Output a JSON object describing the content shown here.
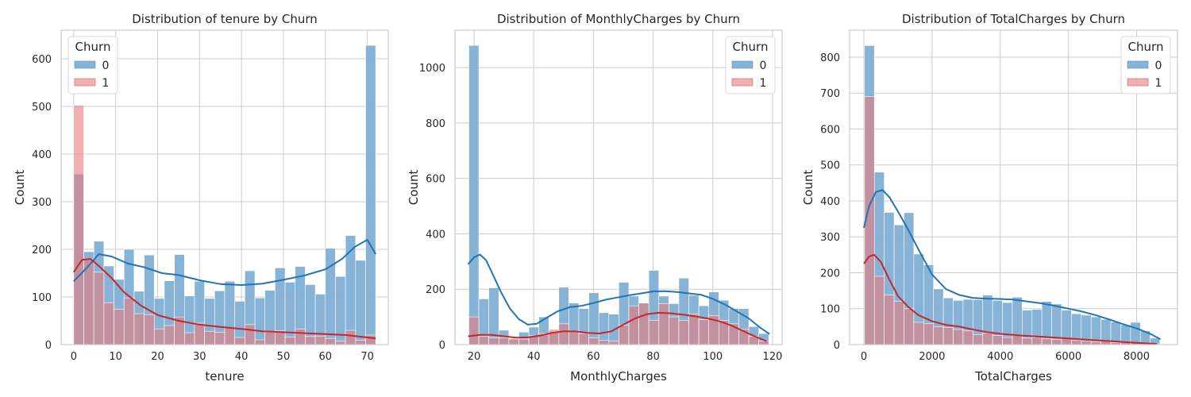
{
  "colors": {
    "churn0_fill": "#7FAFD4",
    "churn0_line": "#2374B5",
    "churn1_fill": "#E97979",
    "churn1_line": "#C8262C",
    "grid": "#CCCCCC",
    "spine": "#CCCCCC"
  },
  "chart_data": [
    {
      "type": "histogram",
      "title": "Distribution of tenure by Churn",
      "xlabel": "tenure",
      "ylabel": "Count",
      "xlim": [
        -3,
        75
      ],
      "ylim": [
        0,
        660
      ],
      "xticks": [
        0,
        10,
        20,
        30,
        40,
        50,
        60,
        70
      ],
      "yticks": [
        0,
        100,
        200,
        300,
        400,
        500,
        600
      ],
      "bin_edges": [
        0,
        2.4,
        4.8,
        7.2,
        9.6,
        12,
        14.4,
        16.8,
        19.2,
        21.6,
        24,
        26.4,
        28.8,
        31.2,
        33.6,
        36,
        38.4,
        40.8,
        43.2,
        45.6,
        48,
        50.4,
        52.8,
        55.2,
        57.6,
        60,
        62.4,
        64.8,
        67.2,
        69.6,
        72
      ],
      "legend": {
        "title": "Churn",
        "position": "upper left"
      },
      "series": [
        {
          "name": "0",
          "counts": [
            358,
            195,
            217,
            165,
            137,
            200,
            112,
            188,
            97,
            134,
            189,
            102,
            133,
            97,
            113,
            133,
            91,
            155,
            98,
            114,
            161,
            131,
            164,
            126,
            106,
            202,
            143,
            229,
            177,
            628
          ],
          "kde": [
            [
              0,
              133
            ],
            [
              3,
              160
            ],
            [
              6,
              190
            ],
            [
              9,
              185
            ],
            [
              13,
              170
            ],
            [
              17,
              162
            ],
            [
              21,
              150
            ],
            [
              25,
              146
            ],
            [
              30,
              135
            ],
            [
              35,
              127
            ],
            [
              40,
              125
            ],
            [
              45,
              128
            ],
            [
              50,
              136
            ],
            [
              55,
              145
            ],
            [
              60,
              158
            ],
            [
              64,
              180
            ],
            [
              67,
              205
            ],
            [
              70,
              220
            ],
            [
              72,
              190
            ]
          ]
        },
        {
          "name": "1",
          "counts": [
            502,
            180,
            152,
            88,
            74,
            98,
            65,
            63,
            33,
            40,
            58,
            25,
            45,
            28,
            26,
            35,
            15,
            42,
            10,
            26,
            29,
            16,
            33,
            17,
            18,
            13,
            7,
            30,
            9,
            20
          ],
          "kde": [
            [
              0,
              152
            ],
            [
              2,
              178
            ],
            [
              4,
              180
            ],
            [
              6,
              165
            ],
            [
              9,
              140
            ],
            [
              12,
              110
            ],
            [
              16,
              82
            ],
            [
              20,
              62
            ],
            [
              25,
              50
            ],
            [
              30,
              42
            ],
            [
              35,
              37
            ],
            [
              40,
              33
            ],
            [
              45,
              28
            ],
            [
              50,
              26
            ],
            [
              55,
              24
            ],
            [
              60,
              22
            ],
            [
              65,
              20
            ],
            [
              70,
              15
            ],
            [
              72,
              13
            ]
          ]
        }
      ]
    },
    {
      "type": "histogram",
      "title": "Distribution of MonthlyCharges by Churn",
      "xlabel": "MonthlyCharges",
      "ylabel": "Count",
      "xlim": [
        13.6,
        123.2
      ],
      "ylim": [
        0,
        1135
      ],
      "xticks": [
        20,
        40,
        60,
        80,
        100,
        120
      ],
      "yticks": [
        0,
        200,
        400,
        600,
        800,
        1000
      ],
      "bin_edges": [
        18.25,
        21.6,
        24.95,
        28.3,
        31.65,
        35,
        38.35,
        41.7,
        45.05,
        48.4,
        51.75,
        55.1,
        58.45,
        61.8,
        65.15,
        68.5,
        71.85,
        75.2,
        78.55,
        81.9,
        85.25,
        88.6,
        91.95,
        95.3,
        98.65,
        102,
        105.35,
        108.7,
        112.05,
        115.4,
        118.75
      ],
      "legend": {
        "title": "Churn",
        "position": "upper right"
      },
      "series": [
        {
          "name": "0",
          "counts": [
            1080,
            165,
            205,
            52,
            22,
            45,
            63,
            100,
            47,
            207,
            150,
            130,
            187,
            115,
            110,
            225,
            175,
            150,
            268,
            175,
            148,
            240,
            178,
            140,
            190,
            160,
            130,
            130,
            65,
            40
          ],
          "kde": [
            [
              18,
              290
            ],
            [
              20,
              315
            ],
            [
              22,
              325
            ],
            [
              24,
              305
            ],
            [
              26,
              260
            ],
            [
              29,
              190
            ],
            [
              32,
              130
            ],
            [
              35,
              92
            ],
            [
              38,
              72
            ],
            [
              41,
              75
            ],
            [
              44,
              95
            ],
            [
              48,
              120
            ],
            [
              52,
              135
            ],
            [
              56,
              140
            ],
            [
              60,
              150
            ],
            [
              64,
              162
            ],
            [
              68,
              170
            ],
            [
              72,
              178
            ],
            [
              76,
              185
            ],
            [
              80,
              192
            ],
            [
              84,
              193
            ],
            [
              88,
              190
            ],
            [
              92,
              185
            ],
            [
              96,
              180
            ],
            [
              100,
              165
            ],
            [
              104,
              145
            ],
            [
              108,
              120
            ],
            [
              112,
              95
            ],
            [
              116,
              60
            ],
            [
              119,
              38
            ]
          ]
        },
        {
          "name": "1",
          "counts": [
            100,
            30,
            25,
            25,
            20,
            20,
            32,
            40,
            55,
            75,
            50,
            40,
            25,
            15,
            12,
            70,
            140,
            150,
            88,
            148,
            100,
            88,
            110,
            90,
            105,
            88,
            75,
            55,
            30,
            12
          ],
          "kde": [
            [
              18,
              30
            ],
            [
              22,
              35
            ],
            [
              26,
              35
            ],
            [
              30,
              30
            ],
            [
              34,
              25
            ],
            [
              38,
              26
            ],
            [
              42,
              32
            ],
            [
              46,
              42
            ],
            [
              50,
              48
            ],
            [
              54,
              48
            ],
            [
              58,
              42
            ],
            [
              62,
              40
            ],
            [
              66,
              48
            ],
            [
              70,
              72
            ],
            [
              74,
              95
            ],
            [
              78,
              110
            ],
            [
              82,
              115
            ],
            [
              86,
              113
            ],
            [
              90,
              108
            ],
            [
              94,
              102
            ],
            [
              98,
              95
            ],
            [
              102,
              85
            ],
            [
              106,
              70
            ],
            [
              110,
              50
            ],
            [
              114,
              30
            ],
            [
              118,
              12
            ]
          ]
        }
      ]
    },
    {
      "type": "histogram",
      "title": "Distribution of TotalCharges by Churn",
      "xlabel": "TotalCharges",
      "ylabel": "Count",
      "xlim": [
        -420,
        9200
      ],
      "ylim": [
        0,
        875
      ],
      "xticks": [
        0,
        2000,
        4000,
        6000,
        8000
      ],
      "yticks": [
        0,
        100,
        200,
        300,
        400,
        500,
        600,
        700,
        800
      ],
      "bin_edges": [
        18.8,
        308,
        597,
        886,
        1175,
        1464,
        1753,
        2042,
        2331,
        2620,
        2909,
        3198,
        3487,
        3776,
        4065,
        4354,
        4643,
        4932,
        5221,
        5510,
        5799,
        6088,
        6377,
        6666,
        6955,
        7244,
        7533,
        7822,
        8111,
        8400,
        8685
      ],
      "legend": {
        "title": "Churn",
        "position": "upper right"
      },
      "series": [
        {
          "name": "0",
          "counts": [
            832,
            480,
            368,
            333,
            367,
            252,
            222,
            155,
            130,
            123,
            126,
            125,
            138,
            123,
            117,
            132,
            96,
            98,
            120,
            113,
            96,
            86,
            82,
            77,
            70,
            63,
            55,
            62,
            38,
            18
          ],
          "kde": [
            [
              0,
              325
            ],
            [
              150,
              385
            ],
            [
              350,
              425
            ],
            [
              550,
              430
            ],
            [
              750,
              410
            ],
            [
              1000,
              370
            ],
            [
              1300,
              320
            ],
            [
              1600,
              265
            ],
            [
              2000,
              195
            ],
            [
              2400,
              155
            ],
            [
              2800,
              138
            ],
            [
              3200,
              130
            ],
            [
              3600,
              128
            ],
            [
              4000,
              127
            ],
            [
              4400,
              125
            ],
            [
              4800,
              120
            ],
            [
              5200,
              115
            ],
            [
              5600,
              108
            ],
            [
              6000,
              100
            ],
            [
              6400,
              92
            ],
            [
              6800,
              82
            ],
            [
              7200,
              70
            ],
            [
              7600,
              57
            ],
            [
              8000,
              45
            ],
            [
              8400,
              30
            ],
            [
              8700,
              15
            ]
          ]
        },
        {
          "name": "1",
          "counts": [
            690,
            190,
            138,
            120,
            100,
            62,
            58,
            50,
            48,
            42,
            38,
            28,
            32,
            25,
            20,
            25,
            18,
            20,
            16,
            15,
            18,
            12,
            10,
            8,
            10,
            6,
            8,
            5,
            3,
            2
          ],
          "kde": [
            [
              0,
              225
            ],
            [
              150,
              245
            ],
            [
              300,
              250
            ],
            [
              500,
              230
            ],
            [
              750,
              180
            ],
            [
              1000,
              135
            ],
            [
              1300,
              105
            ],
            [
              1600,
              82
            ],
            [
              2000,
              65
            ],
            [
              2400,
              55
            ],
            [
              2800,
              50
            ],
            [
              3200,
              42
            ],
            [
              3600,
              35
            ],
            [
              4000,
              30
            ],
            [
              4500,
              26
            ],
            [
              5000,
              23
            ],
            [
              5500,
              20
            ],
            [
              6000,
              17
            ],
            [
              6500,
              14
            ],
            [
              7000,
              11
            ],
            [
              7500,
              8
            ],
            [
              8000,
              5
            ],
            [
              8600,
              2
            ]
          ]
        }
      ]
    }
  ]
}
